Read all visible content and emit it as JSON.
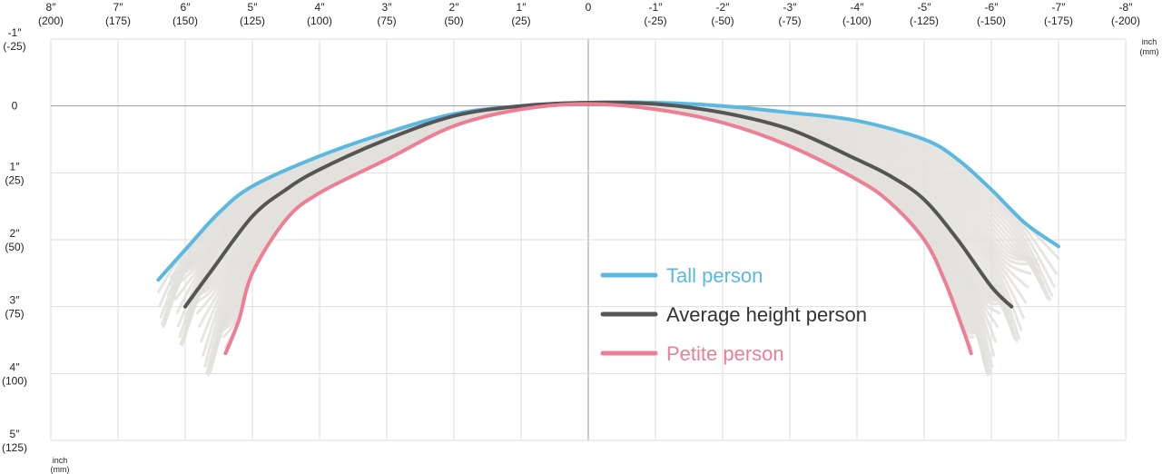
{
  "chart_data": {
    "type": "line",
    "x_unit_label": [
      "inch",
      "(mm)"
    ],
    "y_unit_label": [
      "inch",
      "(mm)"
    ],
    "xlim": [
      8,
      -8
    ],
    "ylim": [
      -1,
      5
    ],
    "grid": true,
    "legend_placement": "center-right",
    "x_ticks": [
      {
        "value": 8,
        "inch": "8″",
        "mm": "(200)"
      },
      {
        "value": 7,
        "inch": "7″",
        "mm": "(175)"
      },
      {
        "value": 6,
        "inch": "6″",
        "mm": "(150)"
      },
      {
        "value": 5,
        "inch": "5″",
        "mm": "(125)"
      },
      {
        "value": 4,
        "inch": "4″",
        "mm": "(100)"
      },
      {
        "value": 3,
        "inch": "3″",
        "mm": "(75)"
      },
      {
        "value": 2,
        "inch": "2″",
        "mm": "(50)"
      },
      {
        "value": 1,
        "inch": "1″",
        "mm": "(25)"
      },
      {
        "value": 0,
        "inch": "0",
        "mm": ""
      },
      {
        "value": -1,
        "inch": "-1″",
        "mm": "(-25)"
      },
      {
        "value": -2,
        "inch": "-2″",
        "mm": "(-50)"
      },
      {
        "value": -3,
        "inch": "-3″",
        "mm": "(-75)"
      },
      {
        "value": -4,
        "inch": "-4″",
        "mm": "(-100)"
      },
      {
        "value": -5,
        "inch": "-5″",
        "mm": "(-125)"
      },
      {
        "value": -6,
        "inch": "-6″",
        "mm": "(-150)"
      },
      {
        "value": -7,
        "inch": "-7″",
        "mm": "(-175)"
      },
      {
        "value": -8,
        "inch": "-8″",
        "mm": "(-200)"
      }
    ],
    "y_ticks": [
      {
        "value": -1,
        "inch": "-1″",
        "mm": "(-25)"
      },
      {
        "value": 0,
        "inch": "0",
        "mm": ""
      },
      {
        "value": 1,
        "inch": "1″",
        "mm": "(25)"
      },
      {
        "value": 2,
        "inch": "2″",
        "mm": "(50)"
      },
      {
        "value": 3,
        "inch": "3″",
        "mm": "(75)"
      },
      {
        "value": 4,
        "inch": "4″",
        "mm": "(100)"
      },
      {
        "value": 5,
        "inch": "5″",
        "mm": "(125)"
      }
    ],
    "series": [
      {
        "name": "Tall person",
        "color": "#5bb8e0",
        "points": [
          [
            6.4,
            2.6
          ],
          [
            6.0,
            2.15
          ],
          [
            5.5,
            1.6
          ],
          [
            5.0,
            1.2
          ],
          [
            4.0,
            0.75
          ],
          [
            3.0,
            0.4
          ],
          [
            2.0,
            0.12
          ],
          [
            1.0,
            0.0
          ],
          [
            0,
            -0.05
          ],
          [
            -1.0,
            -0.05
          ],
          [
            -2.0,
            0.0
          ],
          [
            -3.0,
            0.1
          ],
          [
            -4.0,
            0.22
          ],
          [
            -5.0,
            0.5
          ],
          [
            -5.5,
            0.8
          ],
          [
            -6.0,
            1.25
          ],
          [
            -6.5,
            1.75
          ],
          [
            -7.0,
            2.1
          ]
        ]
      },
      {
        "name": "Average height person",
        "color": "#555555",
        "points": [
          [
            6.0,
            3.0
          ],
          [
            5.6,
            2.45
          ],
          [
            5.0,
            1.65
          ],
          [
            4.5,
            1.25
          ],
          [
            4.0,
            0.95
          ],
          [
            3.0,
            0.5
          ],
          [
            2.0,
            0.15
          ],
          [
            1.0,
            0.0
          ],
          [
            0,
            -0.05
          ],
          [
            -1.0,
            -0.03
          ],
          [
            -2.0,
            0.1
          ],
          [
            -3.0,
            0.35
          ],
          [
            -4.0,
            0.8
          ],
          [
            -4.5,
            1.05
          ],
          [
            -5.0,
            1.4
          ],
          [
            -5.5,
            2.0
          ],
          [
            -6.0,
            2.7
          ],
          [
            -6.3,
            3.0
          ]
        ]
      },
      {
        "name": "Petite person",
        "color": "#ec7f95",
        "points": [
          [
            5.4,
            3.7
          ],
          [
            5.2,
            3.2
          ],
          [
            5.0,
            2.5
          ],
          [
            4.5,
            1.7
          ],
          [
            4.0,
            1.3
          ],
          [
            3.0,
            0.8
          ],
          [
            2.0,
            0.3
          ],
          [
            1.0,
            0.05
          ],
          [
            0,
            -0.03
          ],
          [
            -1.0,
            0.05
          ],
          [
            -2.0,
            0.25
          ],
          [
            -3.0,
            0.6
          ],
          [
            -4.0,
            1.1
          ],
          [
            -4.5,
            1.45
          ],
          [
            -5.0,
            2.0
          ],
          [
            -5.3,
            2.6
          ],
          [
            -5.6,
            3.4
          ],
          [
            -5.7,
            3.7
          ]
        ]
      }
    ]
  }
}
